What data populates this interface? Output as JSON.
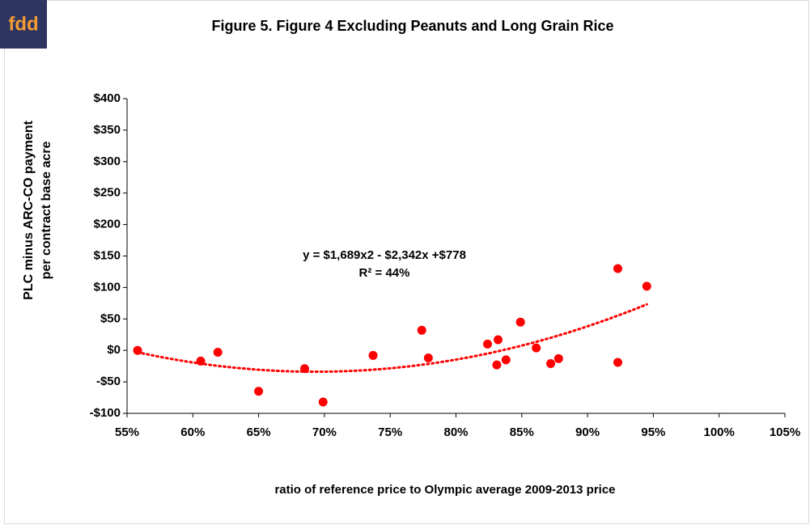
{
  "logo": "fdd",
  "chart_data": {
    "type": "scatter",
    "title": "Figure 5.  Figure 4 Excluding Peanuts and Long Grain Rice",
    "ylabel": [
      "PLC minus ARC-CO payment",
      "per contract base acre"
    ],
    "xlabel": "ratio of reference price to Olympic average 2009-2013 price",
    "annotations": [
      "y = $1,689x2 - $2,342x +$778",
      "R² = 44%"
    ],
    "trendline": {
      "coefficients": [
        1689,
        -2342,
        778
      ],
      "color": "#ff0000"
    },
    "series": [
      {
        "color": "#ff0000",
        "x": [
          55.8,
          60.6,
          61.9,
          65.0,
          68.5,
          69.9,
          73.7,
          77.4,
          77.9,
          82.4,
          83.2,
          83.1,
          83.8,
          84.9,
          86.1,
          87.2,
          87.8,
          92.3,
          92.3,
          94.5
        ],
        "values": [
          0,
          -17,
          -3,
          -65,
          -29,
          -82,
          -8,
          32,
          -12,
          10,
          17,
          -23,
          -15,
          45,
          4,
          -21,
          -13,
          130,
          -19,
          102
        ]
      }
    ],
    "xlim": [
      55,
      105
    ],
    "xticks": [
      {
        "value": 55,
        "label": "55%"
      },
      {
        "value": 60,
        "label": "60%"
      },
      {
        "value": 65,
        "label": "65%"
      },
      {
        "value": 70,
        "label": "70%"
      },
      {
        "value": 75,
        "label": "75%"
      },
      {
        "value": 80,
        "label": "80%"
      },
      {
        "value": 85,
        "label": "85%"
      },
      {
        "value": 90,
        "label": "90%"
      },
      {
        "value": 95,
        "label": "95%"
      },
      {
        "value": 100,
        "label": "100%"
      },
      {
        "value": 105,
        "label": "105%"
      }
    ],
    "ylim": [
      -100,
      400
    ],
    "yticks": [
      {
        "value": -100,
        "label": "-$100"
      },
      {
        "value": -50,
        "label": "-$50"
      },
      {
        "value": 0,
        "label": "$0"
      },
      {
        "value": 50,
        "label": "$50"
      },
      {
        "value": 100,
        "label": "$100"
      },
      {
        "value": 150,
        "label": "$150"
      },
      {
        "value": 200,
        "label": "$200"
      },
      {
        "value": 250,
        "label": "$250"
      },
      {
        "value": 300,
        "label": "$300"
      },
      {
        "value": 350,
        "label": "$350"
      },
      {
        "value": 400,
        "label": "$400"
      }
    ],
    "grid": false
  }
}
